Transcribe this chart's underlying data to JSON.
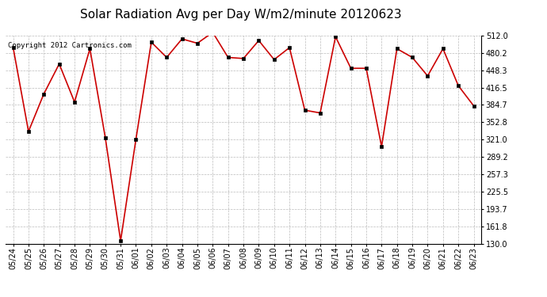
{
  "title": "Solar Radiation Avg per Day W/m2/minute 20120623",
  "copyright_text": "Copyright 2012 Cartronics.com",
  "dates": [
    "05/24",
    "05/25",
    "05/26",
    "05/27",
    "05/28",
    "05/29",
    "05/30",
    "05/31",
    "06/01",
    "06/02",
    "06/03",
    "06/04",
    "06/05",
    "06/06",
    "06/07",
    "06/08",
    "06/09",
    "06/10",
    "06/11",
    "06/12",
    "06/13",
    "06/14",
    "06/15",
    "06/16",
    "06/17",
    "06/18",
    "06/19",
    "06/20",
    "06/21",
    "06/22",
    "06/23"
  ],
  "values": [
    490,
    336,
    405,
    460,
    390,
    488,
    325,
    135,
    322,
    500,
    472,
    506,
    498,
    518,
    472,
    470,
    503,
    468,
    490,
    375,
    370,
    510,
    452,
    452,
    308,
    488,
    472,
    438,
    488,
    420,
    383
  ],
  "line_color": "#cc0000",
  "marker_color": "#000000",
  "bg_color": "#ffffff",
  "grid_color": "#bbbbbb",
  "ylim": [
    130,
    512
  ],
  "yticks": [
    130.0,
    161.8,
    193.7,
    225.5,
    257.3,
    289.2,
    321.0,
    352.8,
    384.7,
    416.5,
    448.3,
    480.2,
    512.0
  ],
  "title_fontsize": 11,
  "tick_fontsize": 7,
  "copyright_fontsize": 6.5
}
